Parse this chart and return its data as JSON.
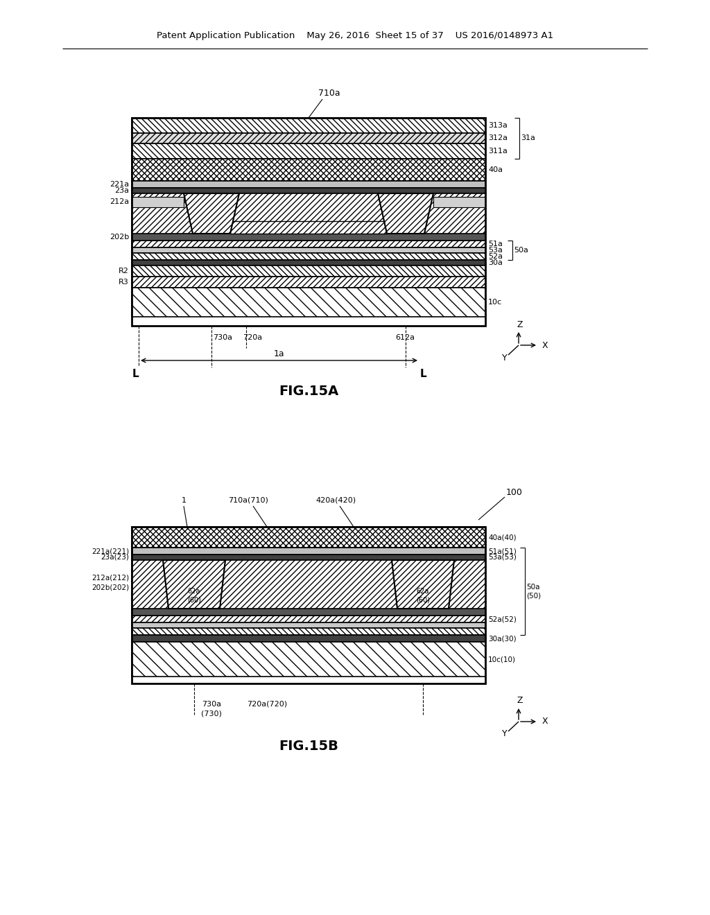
{
  "bg_color": "#ffffff",
  "header_text": "Patent Application Publication    May 26, 2016  Sheet 15 of 37    US 2016/0148973 A1",
  "fig15a_label": "FIG.15A",
  "fig15b_label": "FIG.15B",
  "lfs": 8
}
